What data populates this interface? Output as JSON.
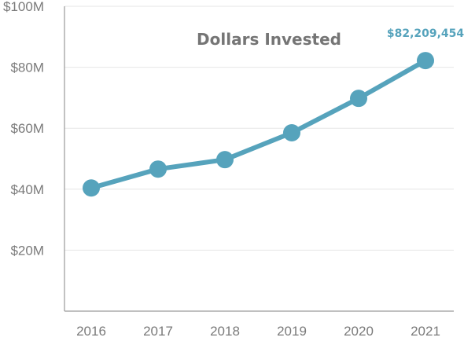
{
  "chart_data": {
    "type": "line",
    "title": "Dollars Invested",
    "xlabel": "",
    "ylabel": "",
    "categories": [
      "2016",
      "2017",
      "2018",
      "2019",
      "2020",
      "2021"
    ],
    "series": [
      {
        "values": [
          40.4,
          46.6,
          49.7,
          58.5,
          69.8,
          82.2
        ]
      }
    ],
    "ylim": [
      0,
      100
    ],
    "yticks": [
      {
        "value": 20,
        "label": "$20M"
      },
      {
        "value": 40,
        "label": "$40M"
      },
      {
        "value": 60,
        "label": "$60M"
      },
      {
        "value": 80,
        "label": "$80M"
      },
      {
        "value": 100,
        "label": "$100M"
      }
    ],
    "annotations": [
      {
        "category": "2021",
        "text": "$82,209,454"
      }
    ],
    "grid": true,
    "legend": "none",
    "colors": {
      "line": "#56a3bc",
      "label": "#56a3bc"
    }
  }
}
